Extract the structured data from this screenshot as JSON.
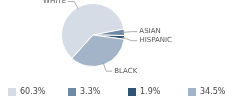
{
  "chart_data": {
    "type": "pie",
    "categories": [
      "WHITE",
      "ASIAN",
      "HISPANIC",
      "BLACK"
    ],
    "values": [
      60.3,
      3.3,
      1.9,
      34.5
    ],
    "value_labels": [
      "60.3%",
      "3.3%",
      "1.9%",
      "34.5%"
    ],
    "colors": [
      "#d5dce6",
      "#6e89a5",
      "#2e5374",
      "#a3b4c8"
    ],
    "legend": "bottom"
  }
}
